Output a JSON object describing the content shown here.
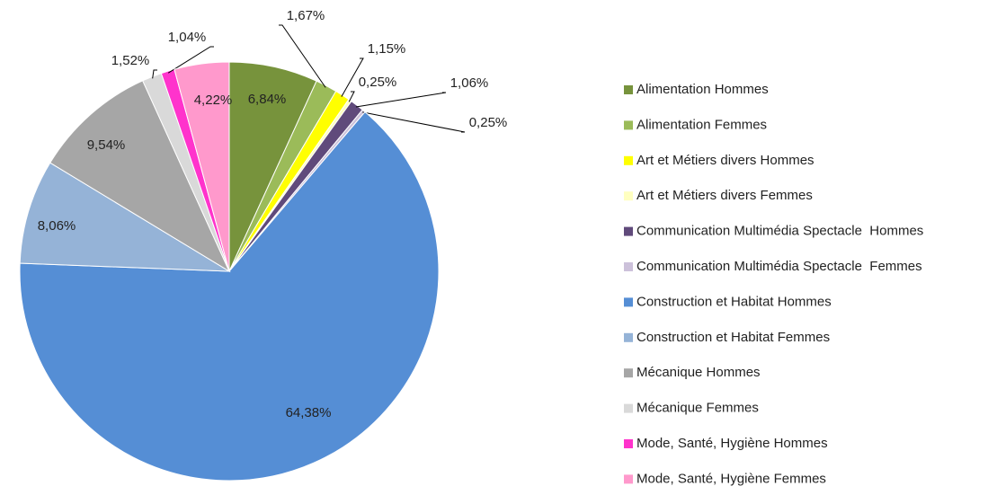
{
  "chart_data": {
    "type": "pie",
    "categories": [
      "Alimentation Hommes",
      "Alimentation Femmes",
      "Art et Métiers divers Hommes",
      "Art et Métiers divers Femmes",
      "Communication Multimédia Spectacle  Hommes",
      "Communication Multimédia Spectacle  Femmes",
      "Construction et Habitat Hommes",
      "Construction et Habitat Femmes",
      "Mécanique Hommes",
      "Mécanique Femmes",
      "Mode, Santé, Hygiène Hommes",
      "Mode, Santé, Hygiène Femmes"
    ],
    "values": [
      6.84,
      1.67,
      1.15,
      0.25,
      1.06,
      0.25,
      64.38,
      8.06,
      9.54,
      1.52,
      1.04,
      4.22
    ],
    "value_labels": [
      "6,84%",
      "1,67%",
      "1,15%",
      "0,25%",
      "1,06%",
      "0,25%",
      "64,38%",
      "8,06%",
      "9,54%",
      "1,52%",
      "1,04%",
      "4,22%"
    ],
    "colors": [
      "#77933c",
      "#9bbb59",
      "#ffff00",
      "#ffffc0",
      "#604a7b",
      "#ccc1da",
      "#558ed5",
      "#95b3d7",
      "#a6a6a6",
      "#d9d9d9",
      "#ff33cc",
      "#ff99cc"
    ],
    "legend": "right"
  }
}
